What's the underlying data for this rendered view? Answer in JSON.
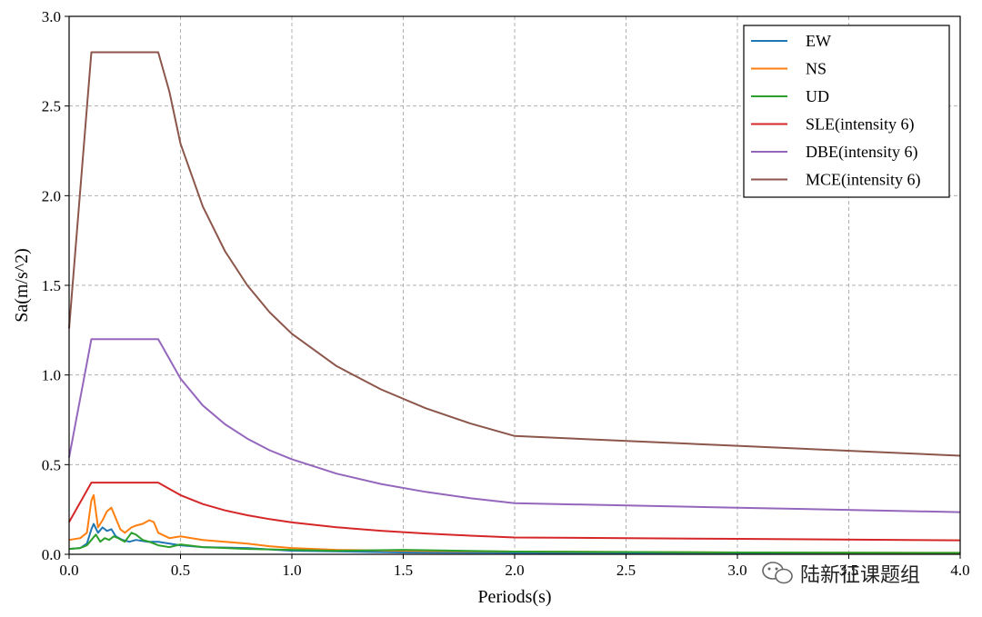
{
  "chart_data": {
    "type": "line",
    "title": "",
    "xlabel": "Periods(s)",
    "ylabel": "Sa(m/s^2)",
    "xlim": [
      0,
      4.0
    ],
    "ylim": [
      0,
      3.0
    ],
    "xticks": [
      "0.0",
      "0.5",
      "1.0",
      "1.5",
      "2.0",
      "2.5",
      "3.0",
      "3.5",
      "4.0"
    ],
    "yticks": [
      "0.0",
      "0.5",
      "1.0",
      "1.5",
      "2.0",
      "2.5",
      "3.0"
    ],
    "grid": true,
    "legend_position": "top-right",
    "series": [
      {
        "name": "EW",
        "color": "#1f77b4",
        "x": [
          0,
          0.05,
          0.08,
          0.1,
          0.11,
          0.13,
          0.15,
          0.17,
          0.19,
          0.21,
          0.24,
          0.27,
          0.3,
          0.35,
          0.4,
          0.5,
          0.6,
          0.8,
          1.0,
          1.5,
          2.0,
          3.0,
          4.0
        ],
        "y": [
          0.03,
          0.035,
          0.06,
          0.14,
          0.17,
          0.12,
          0.15,
          0.13,
          0.14,
          0.1,
          0.08,
          0.07,
          0.08,
          0.07,
          0.07,
          0.05,
          0.04,
          0.035,
          0.02,
          0.01,
          0.008,
          0.005,
          0.003
        ]
      },
      {
        "name": "NS",
        "color": "#ff7f0e",
        "x": [
          0,
          0.05,
          0.08,
          0.1,
          0.11,
          0.13,
          0.15,
          0.17,
          0.19,
          0.21,
          0.23,
          0.25,
          0.28,
          0.3,
          0.33,
          0.36,
          0.38,
          0.4,
          0.45,
          0.5,
          0.6,
          0.7,
          0.8,
          0.9,
          1.0,
          1.2,
          1.5,
          2.0,
          3.0,
          4.0
        ],
        "y": [
          0.08,
          0.09,
          0.12,
          0.3,
          0.33,
          0.15,
          0.19,
          0.24,
          0.26,
          0.2,
          0.14,
          0.12,
          0.15,
          0.16,
          0.17,
          0.19,
          0.18,
          0.12,
          0.09,
          0.1,
          0.08,
          0.07,
          0.06,
          0.045,
          0.035,
          0.025,
          0.02,
          0.015,
          0.01,
          0.008
        ]
      },
      {
        "name": "UD",
        "color": "#2ca02c",
        "x": [
          0,
          0.05,
          0.08,
          0.1,
          0.12,
          0.14,
          0.16,
          0.18,
          0.2,
          0.22,
          0.25,
          0.28,
          0.3,
          0.33,
          0.36,
          0.4,
          0.45,
          0.5,
          0.6,
          0.8,
          1.0,
          1.2,
          1.5,
          2.0,
          3.0,
          4.0
        ],
        "y": [
          0.03,
          0.035,
          0.05,
          0.08,
          0.11,
          0.07,
          0.09,
          0.08,
          0.1,
          0.09,
          0.07,
          0.12,
          0.11,
          0.08,
          0.07,
          0.05,
          0.04,
          0.055,
          0.04,
          0.03,
          0.025,
          0.02,
          0.025,
          0.015,
          0.01,
          0.008
        ]
      },
      {
        "name": "SLE(intensity 6)",
        "color": "#d62728",
        "x": [
          0,
          0.1,
          0.4,
          0.5,
          0.6,
          0.7,
          0.8,
          0.9,
          1.0,
          1.2,
          1.4,
          1.6,
          1.8,
          2.0,
          3.0,
          4.0
        ],
        "y": [
          0.18,
          0.4,
          0.4,
          0.33,
          0.28,
          0.245,
          0.218,
          0.196,
          0.178,
          0.151,
          0.131,
          0.116,
          0.104,
          0.094,
          0.086,
          0.078
        ]
      },
      {
        "name": "DBE(intensity 6)",
        "color": "#9467bd",
        "x": [
          0,
          0.1,
          0.4,
          0.5,
          0.6,
          0.7,
          0.8,
          0.9,
          1.0,
          1.2,
          1.4,
          1.6,
          1.8,
          2.0,
          3.0,
          4.0
        ],
        "y": [
          0.54,
          1.2,
          1.2,
          0.98,
          0.83,
          0.725,
          0.645,
          0.58,
          0.53,
          0.45,
          0.392,
          0.348,
          0.313,
          0.285,
          0.26,
          0.235
        ]
      },
      {
        "name": "MCE(intensity 6)",
        "color": "#8c564b",
        "x": [
          0,
          0.1,
          0.4,
          0.45,
          0.5,
          0.6,
          0.7,
          0.8,
          0.9,
          1.0,
          1.2,
          1.4,
          1.6,
          1.8,
          2.0,
          3.0,
          4.0
        ],
        "y": [
          1.26,
          2.8,
          2.8,
          2.58,
          2.29,
          1.94,
          1.69,
          1.5,
          1.35,
          1.23,
          1.05,
          0.92,
          0.815,
          0.73,
          0.66,
          0.605,
          0.55
        ]
      }
    ]
  },
  "watermark": {
    "text": "陆新征课题组",
    "icon": "wechat-icon"
  }
}
